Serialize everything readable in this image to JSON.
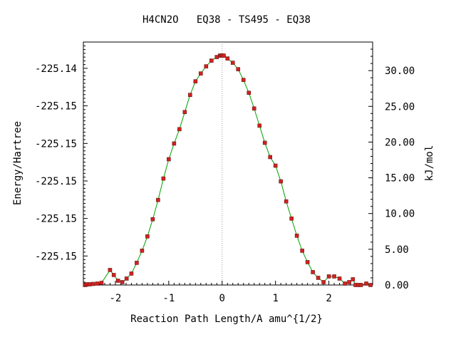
{
  "chart_data": {
    "type": "line",
    "title": "H4CN2O   EQ38 - TS495 - EQ38",
    "xlabel": "Reaction Path Length/A amu^{1/2}",
    "ylabel_left": "Energy/Hartree",
    "ylabel_right": "kJ/mol",
    "xlim": [
      -2.6,
      2.82
    ],
    "ylim_kjmol": [
      0.0,
      34.0
    ],
    "x_ticks": [
      "-2",
      "-1",
      "0",
      "1",
      "2"
    ],
    "x_tick_values": [
      -2,
      -1,
      0,
      1,
      2
    ],
    "left_tick_labels": [
      "-225.14",
      "-225.15",
      "-225.15",
      "-225.15",
      "-225.15",
      "-225.15"
    ],
    "left_tick_values_kjmol": [
      30.32,
      25.07,
      19.81,
      14.56,
      9.31,
      4.06
    ],
    "right_tick_labels": [
      "30.00",
      "25.00",
      "20.00",
      "15.00",
      "10.00",
      "5.00",
      "0.00"
    ],
    "right_tick_values": [
      30,
      25,
      20,
      15,
      10,
      5,
      0
    ],
    "zero_line": {
      "x": 0,
      "style": "dotted"
    },
    "colors": {
      "line": "#00a000",
      "marker": "#d42020",
      "marker_edge": "#6a1a1a",
      "zero_line": "#999999"
    },
    "series": [
      {
        "x": [
          -2.57,
          -2.55,
          -2.52,
          -2.48,
          -2.42,
          -2.34,
          -2.26,
          -2.1,
          -2.03,
          -1.95,
          -1.87,
          -1.79,
          -1.7,
          -1.6,
          -1.5,
          -1.4,
          -1.3,
          -1.2,
          -1.1,
          -1.0,
          -0.9,
          -0.8,
          -0.7,
          -0.6,
          -0.5,
          -0.4,
          -0.3,
          -0.2,
          -0.1,
          -0.04,
          -0.02,
          0.0,
          0.03,
          0.1,
          0.2,
          0.3,
          0.4,
          0.5,
          0.6,
          0.7,
          0.8,
          0.9,
          1.0,
          1.1,
          1.2,
          1.3,
          1.4,
          1.5,
          1.6,
          1.7,
          1.8,
          1.9,
          2.0,
          2.1,
          2.2,
          2.3,
          2.38,
          2.45,
          2.5,
          2.55,
          2.6,
          2.7,
          2.78
        ],
        "y": [
          0.0,
          0.05,
          0.1,
          0.1,
          0.15,
          0.2,
          0.3,
          2.1,
          1.4,
          0.6,
          0.4,
          0.9,
          1.6,
          3.1,
          4.8,
          6.8,
          9.2,
          11.9,
          14.9,
          17.6,
          19.8,
          21.8,
          24.2,
          26.6,
          28.5,
          29.6,
          30.6,
          31.4,
          31.9,
          32.1,
          32.1,
          32.1,
          32.1,
          31.7,
          31.1,
          30.2,
          28.7,
          26.9,
          24.7,
          22.3,
          19.9,
          17.9,
          16.7,
          14.5,
          11.7,
          9.3,
          6.9,
          4.8,
          3.2,
          1.8,
          1.0,
          0.4,
          1.2,
          1.2,
          0.9,
          0.2,
          0.4,
          0.8,
          0.0,
          0.0,
          0.0,
          0.2,
          0.0
        ]
      }
    ]
  }
}
